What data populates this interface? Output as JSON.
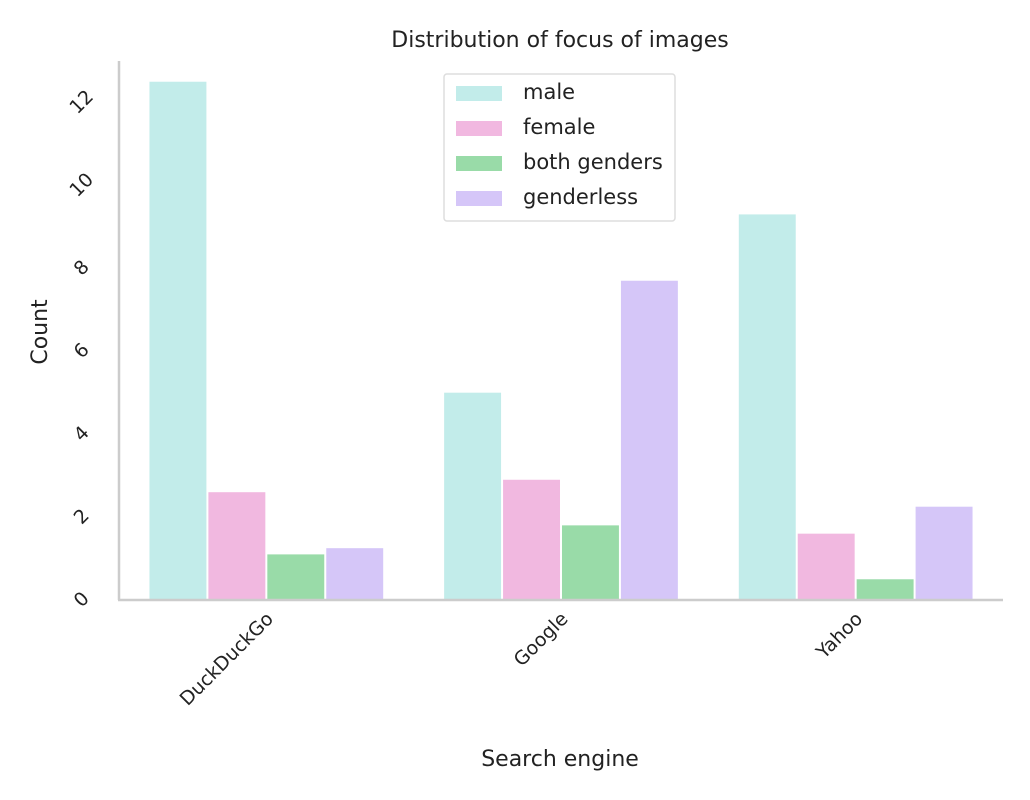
{
  "chart_data": {
    "type": "bar",
    "title": "Distribution of focus of images",
    "xlabel": "Search engine",
    "ylabel": "Count",
    "categories": [
      "DuckDuckGo",
      "Google",
      "Yahoo"
    ],
    "ylim": [
      0,
      13
    ],
    "yticks": [
      0,
      2,
      4,
      6,
      8,
      10,
      12
    ],
    "grid": false,
    "legend_position": "top-center",
    "series": [
      {
        "name": "male",
        "color": "#c2ecea",
        "values": [
          12.5,
          5.0,
          9.3
        ]
      },
      {
        "name": "female",
        "color": "#f1b8e0",
        "values": [
          2.6,
          2.9,
          1.6
        ]
      },
      {
        "name": "both genders",
        "color": "#99dba8",
        "values": [
          1.1,
          1.8,
          0.5
        ]
      },
      {
        "name": "genderless",
        "color": "#d5c6f8",
        "values": [
          1.25,
          7.7,
          2.25
        ]
      }
    ]
  }
}
